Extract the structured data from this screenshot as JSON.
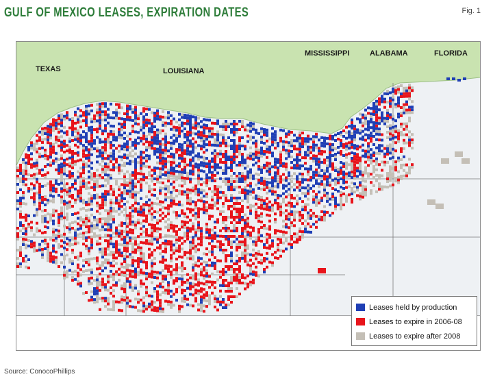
{
  "title": "Gulf of Mexico leases, expiration dates",
  "figure_label": "Fig. 1",
  "source": "Source: ConocoPhillips",
  "map": {
    "state_labels": [
      "TEXAS",
      "LOUISIANA",
      "MISSISSIPPI",
      "ALABAMA",
      "FLORIDA"
    ],
    "colors": {
      "land": "#c9e3b0",
      "water": "#eef1f4",
      "held_by_production": "#1f3fb5",
      "expire_2006_08": "#e8141b",
      "expire_after_2008": "#c4bfb6",
      "planning_lines": "#7a7a7a"
    }
  },
  "legend": {
    "items": [
      {
        "label": "Leases held by production",
        "color": "#1f3fb5"
      },
      {
        "label": "Leases to expire in 2006-08",
        "color": "#e8141b"
      },
      {
        "label": "Leases to expire after 2008",
        "color": "#c4bfb6"
      }
    ]
  }
}
